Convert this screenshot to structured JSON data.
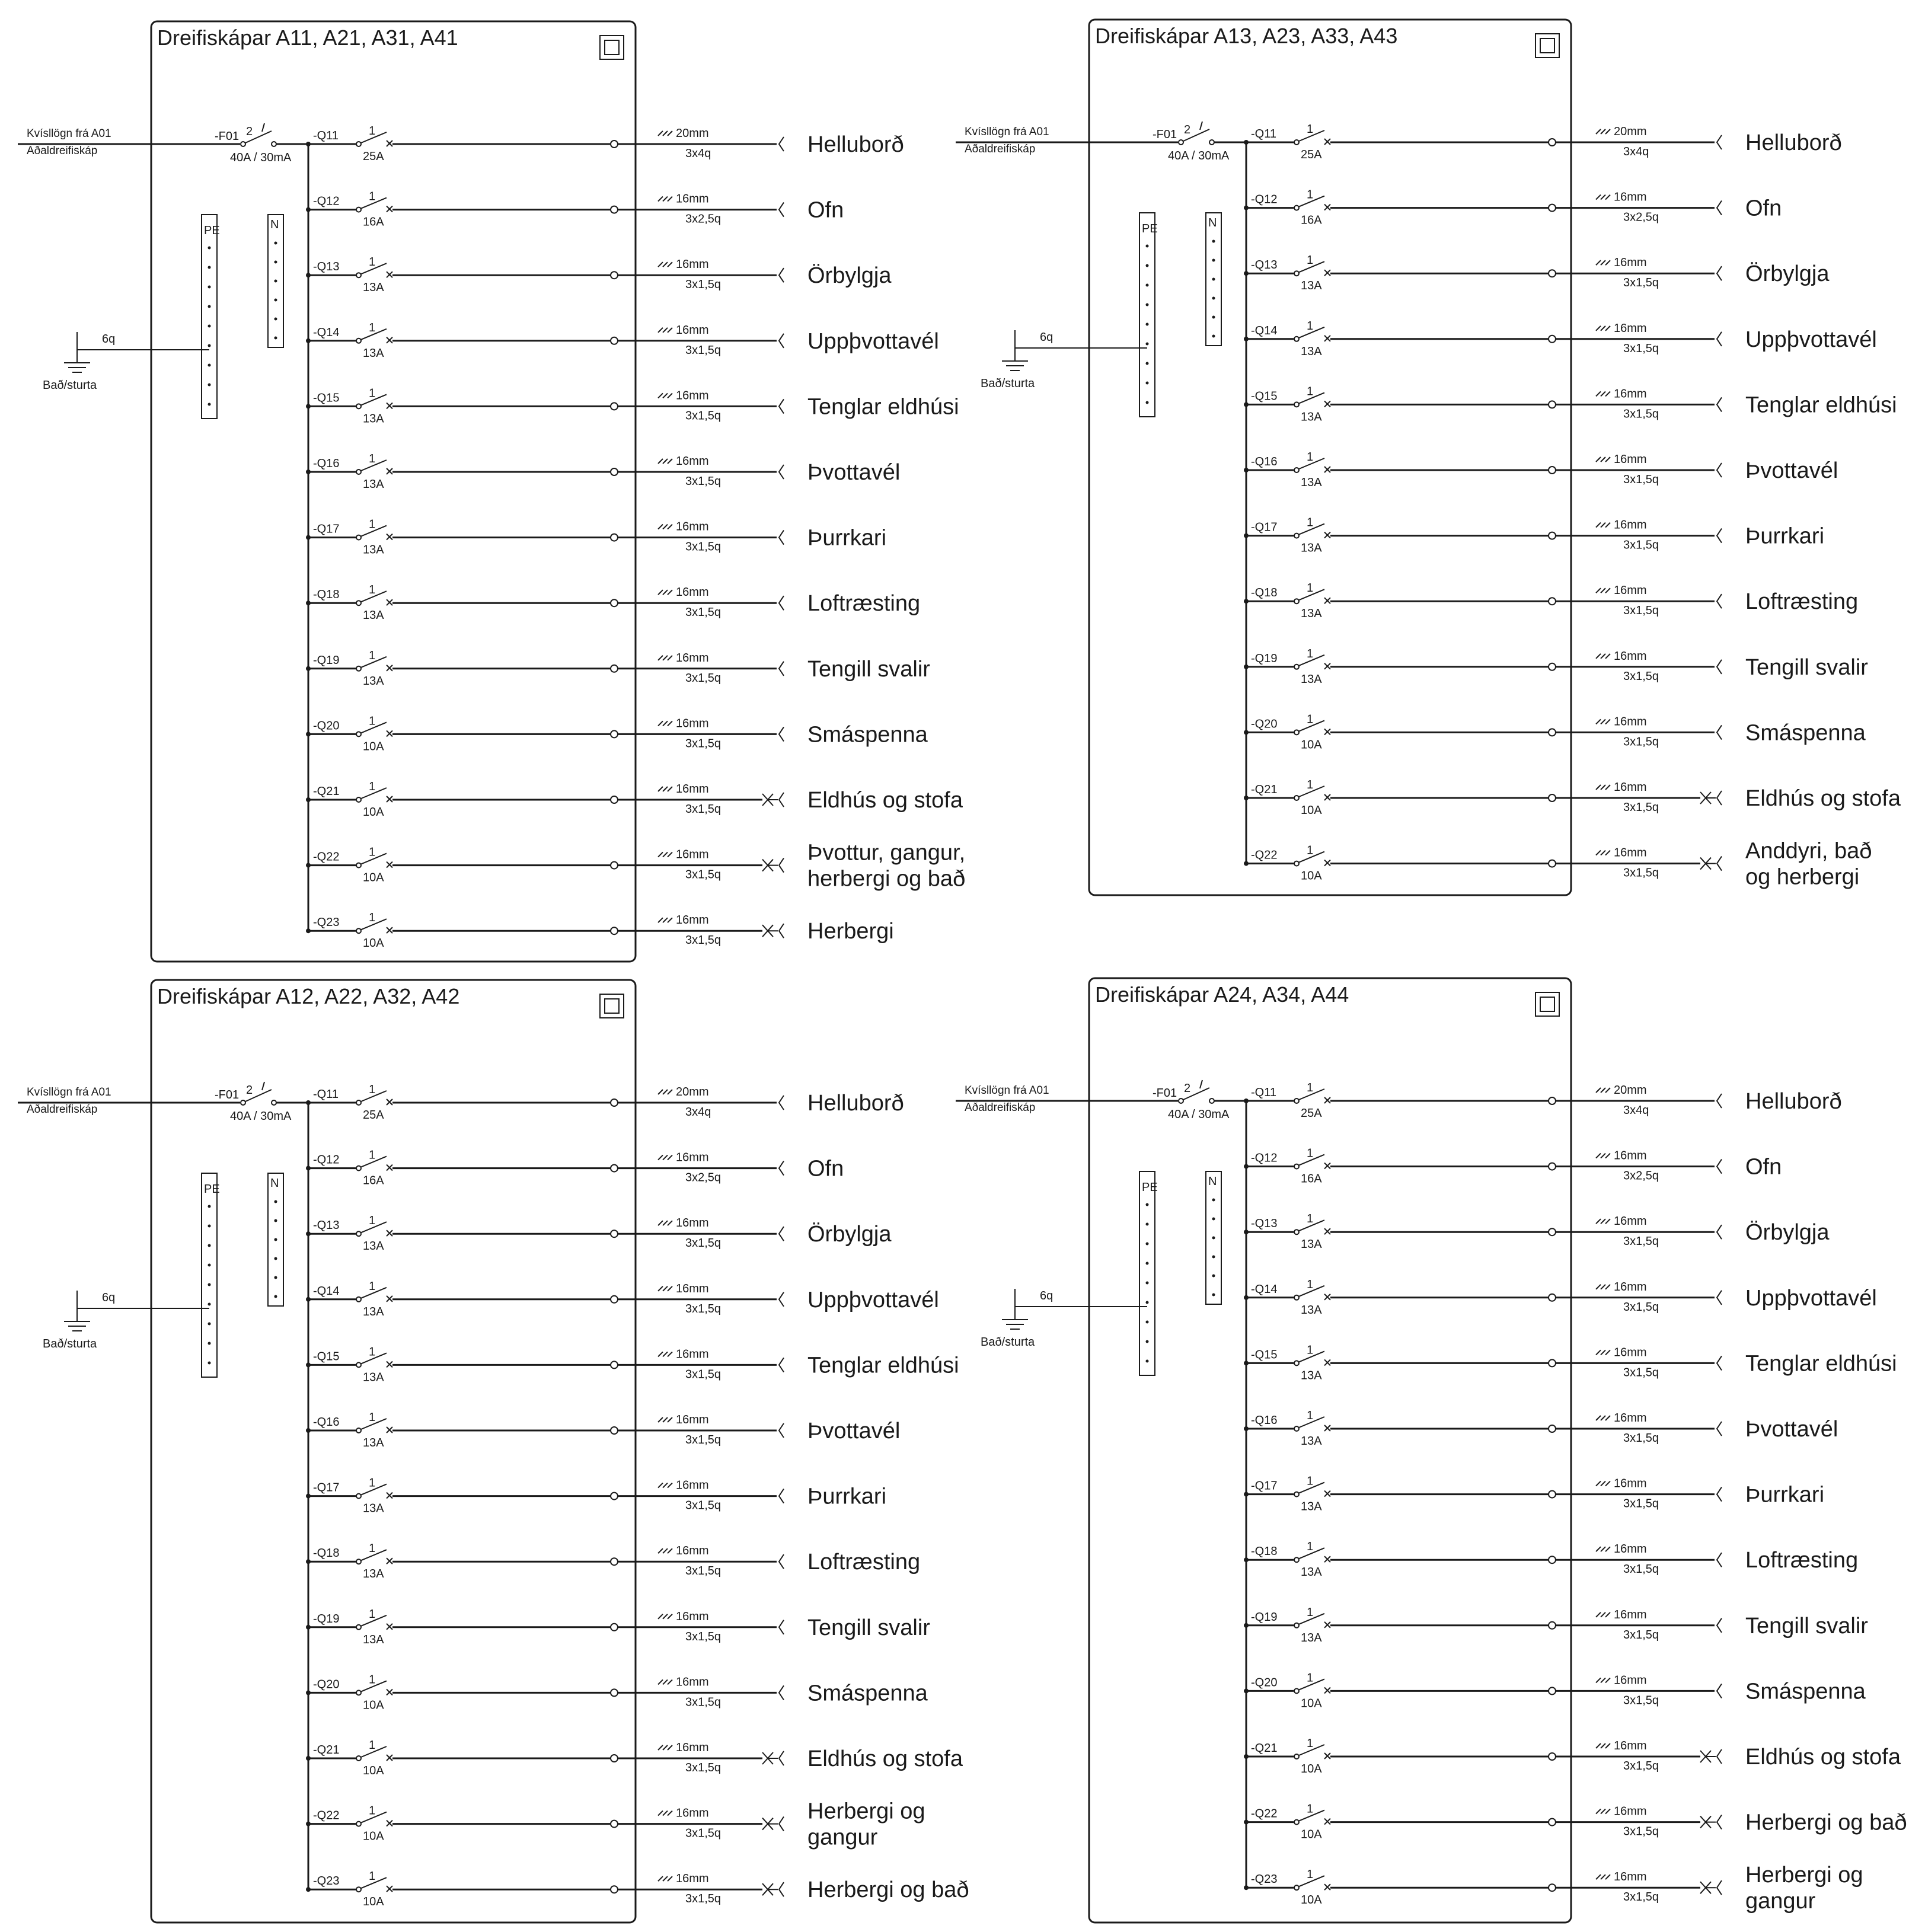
{
  "panels": [
    {
      "title": "Dreifiskápar A11, A21, A31, A41",
      "feed": {
        "line1": "Kvísllögn frá A01",
        "line2": "Aðaldreifiskáp"
      },
      "main_breaker": {
        "id": "-F01",
        "poles": "2",
        "rating": "40A / 30mA"
      },
      "earth": {
        "cable": "6q",
        "label": "Bað/sturta"
      },
      "bars": {
        "pe": "PE",
        "n": "N"
      },
      "circuits": [
        {
          "id": "-Q11",
          "poles": "1",
          "rating": "25A",
          "cable": "20mm",
          "size": "3x4q",
          "load": [
            "Helluborð"
          ],
          "marker": false
        },
        {
          "id": "-Q12",
          "poles": "1",
          "rating": "16A",
          "cable": "16mm",
          "size": "3x2,5q",
          "load": [
            "Ofn"
          ],
          "marker": false
        },
        {
          "id": "-Q13",
          "poles": "1",
          "rating": "13A",
          "cable": "16mm",
          "size": "3x1,5q",
          "load": [
            "Örbylgja"
          ],
          "marker": false
        },
        {
          "id": "-Q14",
          "poles": "1",
          "rating": "13A",
          "cable": "16mm",
          "size": "3x1,5q",
          "load": [
            "Uppþvottavél"
          ],
          "marker": false
        },
        {
          "id": "-Q15",
          "poles": "1",
          "rating": "13A",
          "cable": "16mm",
          "size": "3x1,5q",
          "load": [
            "Tenglar eldhúsi"
          ],
          "marker": false
        },
        {
          "id": "-Q16",
          "poles": "1",
          "rating": "13A",
          "cable": "16mm",
          "size": "3x1,5q",
          "load": [
            "Þvottavél"
          ],
          "marker": false
        },
        {
          "id": "-Q17",
          "poles": "1",
          "rating": "13A",
          "cable": "16mm",
          "size": "3x1,5q",
          "load": [
            "Þurrkari"
          ],
          "marker": false
        },
        {
          "id": "-Q18",
          "poles": "1",
          "rating": "13A",
          "cable": "16mm",
          "size": "3x1,5q",
          "load": [
            "Loftræsting"
          ],
          "marker": false
        },
        {
          "id": "-Q19",
          "poles": "1",
          "rating": "13A",
          "cable": "16mm",
          "size": "3x1,5q",
          "load": [
            "Tengill svalir"
          ],
          "marker": false
        },
        {
          "id": "-Q20",
          "poles": "1",
          "rating": "10A",
          "cable": "16mm",
          "size": "3x1,5q",
          "load": [
            "Smáspenna"
          ],
          "marker": false
        },
        {
          "id": "-Q21",
          "poles": "1",
          "rating": "10A",
          "cable": "16mm",
          "size": "3x1,5q",
          "load": [
            "Eldhús og stofa"
          ],
          "marker": true
        },
        {
          "id": "-Q22",
          "poles": "1",
          "rating": "10A",
          "cable": "16mm",
          "size": "3x1,5q",
          "load": [
            "Þvottur, gangur,",
            "herbergi og bað"
          ],
          "marker": true
        },
        {
          "id": "-Q23",
          "poles": "1",
          "rating": "10A",
          "cable": "16mm",
          "size": "3x1,5q",
          "load": [
            "Herbergi"
          ],
          "marker": true
        }
      ]
    },
    {
      "title": "Dreifiskápar A13, A23, A33, A43",
      "feed": {
        "line1": "Kvísllögn frá A01",
        "line2": "Aðaldreifiskáp"
      },
      "main_breaker": {
        "id": "-F01",
        "poles": "2",
        "rating": "40A / 30mA"
      },
      "earth": {
        "cable": "6q",
        "label": "Bað/sturta"
      },
      "bars": {
        "pe": "PE",
        "n": "N"
      },
      "circuits": [
        {
          "id": "-Q11",
          "poles": "1",
          "rating": "25A",
          "cable": "20mm",
          "size": "3x4q",
          "load": [
            "Helluborð"
          ],
          "marker": false
        },
        {
          "id": "-Q12",
          "poles": "1",
          "rating": "16A",
          "cable": "16mm",
          "size": "3x2,5q",
          "load": [
            "Ofn"
          ],
          "marker": false
        },
        {
          "id": "-Q13",
          "poles": "1",
          "rating": "13A",
          "cable": "16mm",
          "size": "3x1,5q",
          "load": [
            "Örbylgja"
          ],
          "marker": false
        },
        {
          "id": "-Q14",
          "poles": "1",
          "rating": "13A",
          "cable": "16mm",
          "size": "3x1,5q",
          "load": [
            "Uppþvottavél"
          ],
          "marker": false
        },
        {
          "id": "-Q15",
          "poles": "1",
          "rating": "13A",
          "cable": "16mm",
          "size": "3x1,5q",
          "load": [
            "Tenglar eldhúsi"
          ],
          "marker": false
        },
        {
          "id": "-Q16",
          "poles": "1",
          "rating": "13A",
          "cable": "16mm",
          "size": "3x1,5q",
          "load": [
            "Þvottavél"
          ],
          "marker": false
        },
        {
          "id": "-Q17",
          "poles": "1",
          "rating": "13A",
          "cable": "16mm",
          "size": "3x1,5q",
          "load": [
            "Þurrkari"
          ],
          "marker": false
        },
        {
          "id": "-Q18",
          "poles": "1",
          "rating": "13A",
          "cable": "16mm",
          "size": "3x1,5q",
          "load": [
            "Loftræsting"
          ],
          "marker": false
        },
        {
          "id": "-Q19",
          "poles": "1",
          "rating": "13A",
          "cable": "16mm",
          "size": "3x1,5q",
          "load": [
            "Tengill svalir"
          ],
          "marker": false
        },
        {
          "id": "-Q20",
          "poles": "1",
          "rating": "10A",
          "cable": "16mm",
          "size": "3x1,5q",
          "load": [
            "Smáspenna"
          ],
          "marker": false
        },
        {
          "id": "-Q21",
          "poles": "1",
          "rating": "10A",
          "cable": "16mm",
          "size": "3x1,5q",
          "load": [
            "Eldhús og stofa"
          ],
          "marker": true
        },
        {
          "id": "-Q22",
          "poles": "1",
          "rating": "10A",
          "cable": "16mm",
          "size": "3x1,5q",
          "load": [
            "Anddyri, bað",
            "og herbergi"
          ],
          "marker": true
        }
      ]
    },
    {
      "title": "Dreifiskápar A12, A22, A32, A42",
      "feed": {
        "line1": "Kvísllögn frá A01",
        "line2": "Aðaldreifiskáp"
      },
      "main_breaker": {
        "id": "-F01",
        "poles": "2",
        "rating": "40A / 30mA"
      },
      "earth": {
        "cable": "6q",
        "label": "Bað/sturta"
      },
      "bars": {
        "pe": "PE",
        "n": "N"
      },
      "circuits": [
        {
          "id": "-Q11",
          "poles": "1",
          "rating": "25A",
          "cable": "20mm",
          "size": "3x4q",
          "load": [
            "Helluborð"
          ],
          "marker": false
        },
        {
          "id": "-Q12",
          "poles": "1",
          "rating": "16A",
          "cable": "16mm",
          "size": "3x2,5q",
          "load": [
            "Ofn"
          ],
          "marker": false
        },
        {
          "id": "-Q13",
          "poles": "1",
          "rating": "13A",
          "cable": "16mm",
          "size": "3x1,5q",
          "load": [
            "Örbylgja"
          ],
          "marker": false
        },
        {
          "id": "-Q14",
          "poles": "1",
          "rating": "13A",
          "cable": "16mm",
          "size": "3x1,5q",
          "load": [
            "Uppþvottavél"
          ],
          "marker": false
        },
        {
          "id": "-Q15",
          "poles": "1",
          "rating": "13A",
          "cable": "16mm",
          "size": "3x1,5q",
          "load": [
            "Tenglar eldhúsi"
          ],
          "marker": false
        },
        {
          "id": "-Q16",
          "poles": "1",
          "rating": "13A",
          "cable": "16mm",
          "size": "3x1,5q",
          "load": [
            "Þvottavél"
          ],
          "marker": false
        },
        {
          "id": "-Q17",
          "poles": "1",
          "rating": "13A",
          "cable": "16mm",
          "size": "3x1,5q",
          "load": [
            "Þurrkari"
          ],
          "marker": false
        },
        {
          "id": "-Q18",
          "poles": "1",
          "rating": "13A",
          "cable": "16mm",
          "size": "3x1,5q",
          "load": [
            "Loftræsting"
          ],
          "marker": false
        },
        {
          "id": "-Q19",
          "poles": "1",
          "rating": "13A",
          "cable": "16mm",
          "size": "3x1,5q",
          "load": [
            "Tengill svalir"
          ],
          "marker": false
        },
        {
          "id": "-Q20",
          "poles": "1",
          "rating": "10A",
          "cable": "16mm",
          "size": "3x1,5q",
          "load": [
            "Smáspenna"
          ],
          "marker": false
        },
        {
          "id": "-Q21",
          "poles": "1",
          "rating": "10A",
          "cable": "16mm",
          "size": "3x1,5q",
          "load": [
            "Eldhús og stofa"
          ],
          "marker": true
        },
        {
          "id": "-Q22",
          "poles": "1",
          "rating": "10A",
          "cable": "16mm",
          "size": "3x1,5q",
          "load": [
            "Herbergi og",
            "gangur"
          ],
          "marker": true
        },
        {
          "id": "-Q23",
          "poles": "1",
          "rating": "10A",
          "cable": "16mm",
          "size": "3x1,5q",
          "load": [
            "Herbergi og bað"
          ],
          "marker": true
        }
      ]
    },
    {
      "title": "Dreifiskápar A24, A34, A44",
      "feed": {
        "line1": "Kvísllögn frá A01",
        "line2": "Aðaldreifiskáp"
      },
      "main_breaker": {
        "id": "-F01",
        "poles": "2",
        "rating": "40A / 30mA"
      },
      "earth": {
        "cable": "6q",
        "label": "Bað/sturta"
      },
      "bars": {
        "pe": "PE",
        "n": "N"
      },
      "circuits": [
        {
          "id": "-Q11",
          "poles": "1",
          "rating": "25A",
          "cable": "20mm",
          "size": "3x4q",
          "load": [
            "Helluborð"
          ],
          "marker": false
        },
        {
          "id": "-Q12",
          "poles": "1",
          "rating": "16A",
          "cable": "16mm",
          "size": "3x2,5q",
          "load": [
            "Ofn"
          ],
          "marker": false
        },
        {
          "id": "-Q13",
          "poles": "1",
          "rating": "13A",
          "cable": "16mm",
          "size": "3x1,5q",
          "load": [
            "Örbylgja"
          ],
          "marker": false
        },
        {
          "id": "-Q14",
          "poles": "1",
          "rating": "13A",
          "cable": "16mm",
          "size": "3x1,5q",
          "load": [
            "Uppþvottavél"
          ],
          "marker": false
        },
        {
          "id": "-Q15",
          "poles": "1",
          "rating": "13A",
          "cable": "16mm",
          "size": "3x1,5q",
          "load": [
            "Tenglar eldhúsi"
          ],
          "marker": false
        },
        {
          "id": "-Q16",
          "poles": "1",
          "rating": "13A",
          "cable": "16mm",
          "size": "3x1,5q",
          "load": [
            "Þvottavél"
          ],
          "marker": false
        },
        {
          "id": "-Q17",
          "poles": "1",
          "rating": "13A",
          "cable": "16mm",
          "size": "3x1,5q",
          "load": [
            "Þurrkari"
          ],
          "marker": false
        },
        {
          "id": "-Q18",
          "poles": "1",
          "rating": "13A",
          "cable": "16mm",
          "size": "3x1,5q",
          "load": [
            "Loftræsting"
          ],
          "marker": false
        },
        {
          "id": "-Q19",
          "poles": "1",
          "rating": "13A",
          "cable": "16mm",
          "size": "3x1,5q",
          "load": [
            "Tengill svalir"
          ],
          "marker": false
        },
        {
          "id": "-Q20",
          "poles": "1",
          "rating": "10A",
          "cable": "16mm",
          "size": "3x1,5q",
          "load": [
            "Smáspenna"
          ],
          "marker": false
        },
        {
          "id": "-Q21",
          "poles": "1",
          "rating": "10A",
          "cable": "16mm",
          "size": "3x1,5q",
          "load": [
            "Eldhús og stofa"
          ],
          "marker": true
        },
        {
          "id": "-Q22",
          "poles": "1",
          "rating": "10A",
          "cable": "16mm",
          "size": "3x1,5q",
          "load": [
            "Herbergi og bað"
          ],
          "marker": true
        },
        {
          "id": "-Q23",
          "poles": "1",
          "rating": "10A",
          "cable": "16mm",
          "size": "3x1,5q",
          "load": [
            "Herbergi og",
            "gangur"
          ],
          "marker": true
        }
      ]
    }
  ]
}
